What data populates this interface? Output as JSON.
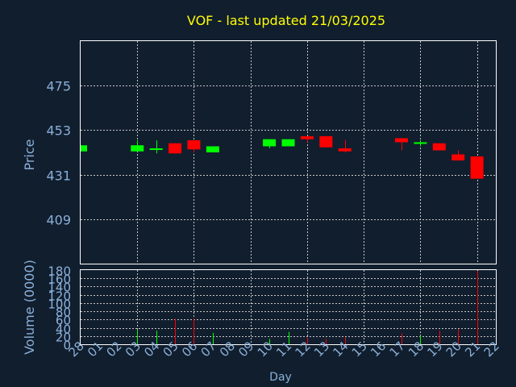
{
  "chart_data": {
    "type": "candlestick",
    "title": "VOF - last updated 21/03/2025",
    "colors": {
      "background": "#111e2e",
      "title": "#ffff00",
      "axis_text": "#8ab0d8",
      "grid": "#c8c8c8",
      "up": "#00ff00",
      "down": "#ff0000"
    },
    "price_panel": {
      "ylabel": "Price",
      "ylim": [
        387,
        497
      ],
      "ticks": [
        409,
        431,
        453,
        475
      ]
    },
    "volume_panel": {
      "ylabel": "Volume (0000)",
      "ylim": [
        0,
        180
      ],
      "ticks": [
        0,
        20,
        40,
        60,
        80,
        100,
        120,
        140,
        160,
        180
      ]
    },
    "xlabel": "Day",
    "days": [
      "28",
      "01",
      "02",
      "03",
      "04",
      "05",
      "06",
      "07",
      "08",
      "09",
      "10",
      "11",
      "12",
      "13",
      "14",
      "15",
      "16",
      "17",
      "18",
      "19",
      "20",
      "21",
      "22"
    ],
    "candles": [
      {
        "day": "28",
        "open": 442.5,
        "close": 445.5,
        "high": 445.5,
        "low": 442.5,
        "volume": 0
      },
      {
        "day": "03",
        "open": 442.5,
        "close": 445.5,
        "high": 448.0,
        "low": 442.5,
        "volume": 35
      },
      {
        "day": "04",
        "open": 443.5,
        "close": 444.0,
        "high": 448.0,
        "low": 441.5,
        "volume": 33
      },
      {
        "day": "05",
        "open": 446.5,
        "close": 441.5,
        "high": 446.5,
        "low": 441.5,
        "volume": 62
      },
      {
        "day": "06",
        "open": 448.0,
        "close": 443.5,
        "high": 448.0,
        "low": 442.0,
        "volume": 63
      },
      {
        "day": "07",
        "open": 442.0,
        "close": 445.0,
        "high": 445.0,
        "low": 442.0,
        "volume": 28
      },
      {
        "day": "10",
        "open": 445.0,
        "close": 448.5,
        "high": 448.5,
        "low": 444.0,
        "volume": 13
      },
      {
        "day": "11",
        "open": 445.0,
        "close": 448.5,
        "high": 448.5,
        "low": 445.0,
        "volume": 30
      },
      {
        "day": "12",
        "open": 450.0,
        "close": 448.5,
        "high": 450.0,
        "low": 447.0,
        "volume": 16
      },
      {
        "day": "13",
        "open": 450.0,
        "close": 444.5,
        "high": 450.0,
        "low": 444.5,
        "volume": 13
      },
      {
        "day": "14",
        "open": 444.0,
        "close": 442.5,
        "high": 448.0,
        "low": 442.0,
        "volume": 17
      },
      {
        "day": "17",
        "open": 449.0,
        "close": 447.0,
        "high": 449.0,
        "low": 443.0,
        "volume": 27
      },
      {
        "day": "18",
        "open": 446.5,
        "close": 447.0,
        "high": 448.0,
        "low": 445.0,
        "volume": 21
      },
      {
        "day": "19",
        "open": 446.5,
        "close": 443.0,
        "high": 446.5,
        "low": 443.0,
        "volume": 33
      },
      {
        "day": "20",
        "open": 441.0,
        "close": 438.0,
        "high": 443.0,
        "low": 438.0,
        "volume": 37
      },
      {
        "day": "21",
        "open": 440.0,
        "close": 429.0,
        "high": 440.0,
        "low": 429.0,
        "volume": 178
      }
    ]
  }
}
